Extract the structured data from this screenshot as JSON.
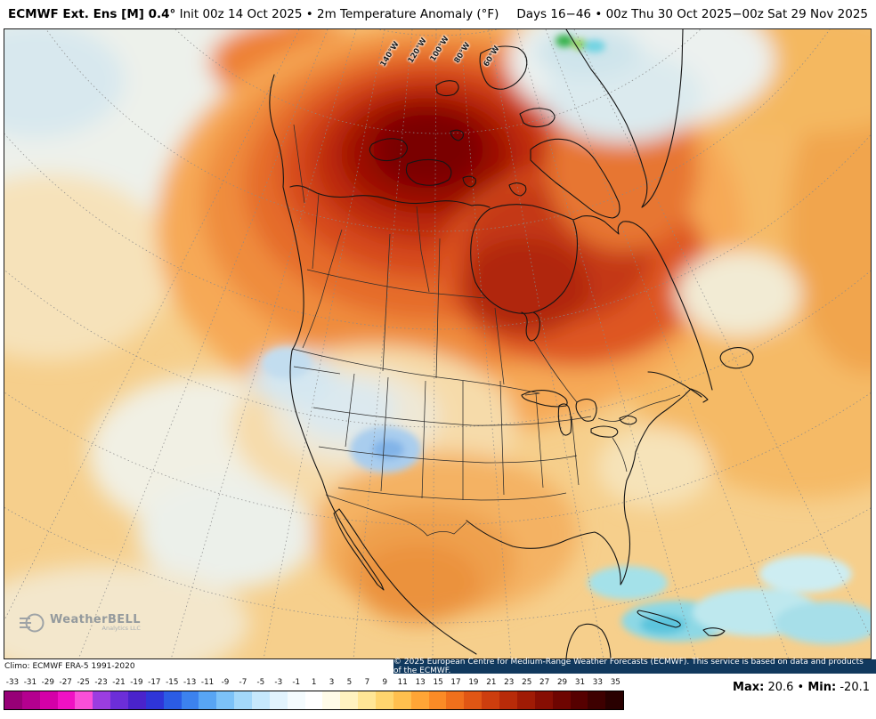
{
  "header": {
    "title_bold": "ECMWF Ext. Ens [M] 0.4°",
    "title_rest": " Init 00z 14 Oct 2025 • 2m Temperature Anomaly (°F)",
    "title_right": "Days 16−46 • 00z Thu 30 Oct 2025−00z Sat 29 Nov 2025"
  },
  "map": {
    "lon_labels": [
      "140°W",
      "120°W",
      "100°W",
      "80°W",
      "60°W"
    ],
    "watermark": {
      "name": "WeatherBELL",
      "sub": "Analytics LLC"
    }
  },
  "attribution": {
    "left": "Climo: ECMWF ERA-5 1991-2020",
    "right": "© 2025 European Centre for Medium-Range Weather Forecasts (ECMWF). This service is based on data and products of the ECMWF."
  },
  "colorbar": {
    "ticks": [
      "-33",
      "-31",
      "-29",
      "-27",
      "-25",
      "-23",
      "-21",
      "-19",
      "-17",
      "-15",
      "-13",
      "-11",
      "-9",
      "-7",
      "-5",
      "-3",
      "-1",
      "1",
      "3",
      "5",
      "7",
      "9",
      "11",
      "13",
      "15",
      "17",
      "19",
      "21",
      "23",
      "25",
      "27",
      "29",
      "31",
      "33",
      "35"
    ],
    "colors": [
      "#970077",
      "#b4008f",
      "#d400a8",
      "#f011c4",
      "#fa4fd8",
      "#9b3de0",
      "#6c2ed8",
      "#4a23cc",
      "#2f35d8",
      "#2b5ce4",
      "#3c82ee",
      "#58a5f4",
      "#7cc2f8",
      "#a3d8fa",
      "#c6e8fc",
      "#e1f3fd",
      "#f4fbfe",
      "#ffffff",
      "#fffbe8",
      "#fff2c0",
      "#ffe696",
      "#ffd56e",
      "#ffbf4e",
      "#ffa536",
      "#fb8b26",
      "#f0701c",
      "#e05614",
      "#cd3e0e",
      "#b82b09",
      "#a01b05",
      "#870e03",
      "#6e0501",
      "#560000",
      "#3e0000",
      "#290000"
    ]
  },
  "stats": {
    "max_label": "Max:",
    "max_value": "20.6",
    "separator": "•",
    "min_label": "Min:",
    "min_value": "-20.1"
  }
}
